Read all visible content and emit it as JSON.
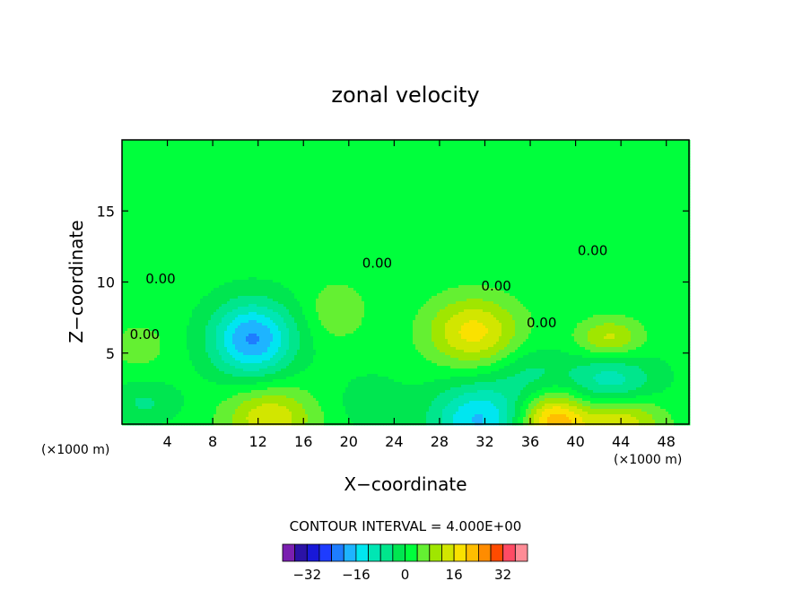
{
  "chart_data": {
    "type": "heatmap",
    "title": "zonal velocity",
    "xlabel": "X−coordinate",
    "ylabel": "Z−coordinate",
    "x_unit_left": "(×1000 m)",
    "x_unit_right": "(×1000 m)",
    "xlim": [
      0,
      50
    ],
    "ylim": [
      0,
      20
    ],
    "xticks": [
      4,
      8,
      12,
      16,
      20,
      24,
      28,
      32,
      36,
      40,
      44,
      48
    ],
    "yticks": [
      5,
      10,
      15
    ],
    "xtick_labels": [
      "4",
      "8",
      "12",
      "16",
      "20",
      "24",
      "28",
      "32",
      "36",
      "40",
      "44",
      "48"
    ],
    "ytick_labels": [
      "5",
      "10",
      "15"
    ],
    "contour_interval_label": "CONTOUR INTERVAL = 4.000E+00",
    "contour_labels": [
      {
        "text": "0.00",
        "x": 3.4,
        "y": 9.9
      },
      {
        "text": "0.00",
        "x": 2.0,
        "y": 6.0
      },
      {
        "text": "0.00",
        "x": 22.5,
        "y": 11.0
      },
      {
        "text": "0.00",
        "x": 33.0,
        "y": 9.4
      },
      {
        "text": "0.00",
        "x": 41.5,
        "y": 11.9
      },
      {
        "text": "0.00",
        "x": 37.0,
        "y": 6.8
      }
    ],
    "anomalies": [
      {
        "cx": 11.5,
        "cy": 6.0,
        "rx": 3.6,
        "ry": 2.6,
        "value": -22
      },
      {
        "cx": 13.0,
        "cy": 0.4,
        "rx": 3.8,
        "ry": 2.2,
        "value": 14
      },
      {
        "cx": 31.0,
        "cy": 6.5,
        "rx": 4.0,
        "ry": 2.4,
        "value": 16
      },
      {
        "cx": 31.5,
        "cy": 0.3,
        "rx": 4.2,
        "ry": 2.6,
        "value": -18
      },
      {
        "cx": 38.0,
        "cy": 0.2,
        "rx": 3.0,
        "ry": 2.0,
        "value": 22
      },
      {
        "cx": 44.0,
        "cy": 0.2,
        "rx": 3.6,
        "ry": 1.8,
        "value": 14
      },
      {
        "cx": 43.0,
        "cy": 6.0,
        "rx": 2.8,
        "ry": 1.4,
        "value": 12
      },
      {
        "cx": 43.0,
        "cy": 3.0,
        "rx": 4.0,
        "ry": 2.0,
        "value": -12
      },
      {
        "cx": 19.0,
        "cy": 8.0,
        "rx": 2.5,
        "ry": 2.0,
        "value": 6
      },
      {
        "cx": 1.5,
        "cy": 5.5,
        "rx": 2.4,
        "ry": 1.6,
        "value": 5
      },
      {
        "cx": 2.0,
        "cy": 1.5,
        "rx": 3.0,
        "ry": 1.4,
        "value": -6
      },
      {
        "cx": 36.0,
        "cy": 3.5,
        "rx": 3.0,
        "ry": 2.0,
        "value": -6
      },
      {
        "cx": 22.0,
        "cy": 1.5,
        "rx": 3.0,
        "ry": 2.0,
        "value": -4
      }
    ],
    "colorbar": {
      "tick_labels": [
        "−32",
        "−16",
        "0",
        "16",
        "32"
      ],
      "tick_values": [
        -32,
        -16,
        0,
        16,
        32
      ],
      "levels": [
        -40,
        -36,
        -32,
        -28,
        -24,
        -20,
        -16,
        -12,
        -8,
        -4,
        0,
        4,
        8,
        12,
        16,
        20,
        24,
        28,
        32,
        36,
        40
      ],
      "colors": [
        "#7a1fb0",
        "#2b12a6",
        "#1818d8",
        "#1e3cff",
        "#1e7dff",
        "#1eb4ff",
        "#00e6f0",
        "#00e6b4",
        "#00e68c",
        "#00e650",
        "#00ff3c",
        "#64f032",
        "#a0e600",
        "#d2e600",
        "#fae100",
        "#ffbe00",
        "#ff8c00",
        "#ff4b00",
        "#ff4b64",
        "#ff8c96"
      ]
    }
  }
}
